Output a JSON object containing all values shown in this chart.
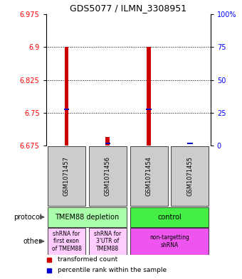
{
  "title": "GDS5077 / ILMN_3308951",
  "samples": [
    "GSM1071457",
    "GSM1071456",
    "GSM1071454",
    "GSM1071455"
  ],
  "red_values": [
    6.9,
    6.695,
    6.9,
    6.67
  ],
  "blue_values": [
    6.757,
    6.679,
    6.757,
    6.679
  ],
  "ylim_min": 6.675,
  "ylim_max": 6.975,
  "yticks_left": [
    6.675,
    6.75,
    6.825,
    6.9,
    6.975
  ],
  "yticks_right_vals": [
    0,
    25,
    50,
    75,
    100
  ],
  "yticks_right_labels": [
    "0",
    "25",
    "50",
    "75",
    "100%"
  ],
  "hlines": [
    6.75,
    6.825,
    6.9
  ],
  "protocol_colors": [
    "#aaffaa",
    "#44ee44"
  ],
  "protocol_labels": [
    "TMEM88 depletion",
    "control"
  ],
  "other_colors_left": "#ffccff",
  "other_color_right": "#ee55ee",
  "other_labels": [
    "shRNA for\nfirst exon\nof TMEM88",
    "shRNA for\n3'UTR of\nTMEM88",
    "non-targetting\nshRNA"
  ],
  "bar_width": 0.1,
  "red_color": "#cc0000",
  "blue_color": "#0000cc",
  "legend_red": "transformed count",
  "legend_blue": "percentile rank within the sample",
  "title_fontsize": 9,
  "tick_fontsize": 7,
  "label_fontsize": 7,
  "sample_fontsize": 6,
  "protocol_fontsize": 7,
  "other_fontsize": 5.5,
  "legend_fontsize": 6.5
}
